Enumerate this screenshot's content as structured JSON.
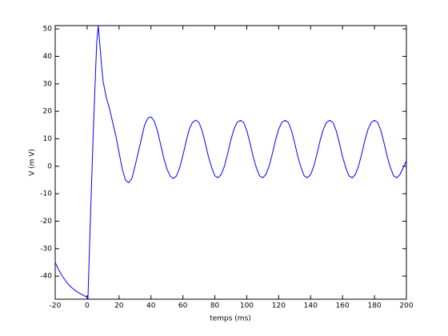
{
  "chart_data": {
    "type": "line",
    "xlabel": "temps (ms)",
    "ylabel": "V (m V)",
    "xlim": [
      -20,
      200
    ],
    "ylim": [
      -48.4,
      51.2
    ],
    "xticks": [
      -20,
      0,
      20,
      40,
      60,
      80,
      100,
      120,
      140,
      160,
      180,
      200
    ],
    "yticks": [
      -40,
      -30,
      -20,
      -10,
      0,
      10,
      20,
      30,
      40,
      50
    ],
    "grid": false,
    "x": [
      -20,
      -18,
      -16,
      -14,
      -12,
      -10,
      -8,
      -6,
      -4,
      -2,
      0,
      0.5,
      2,
      4,
      6,
      7,
      8,
      9,
      10,
      12,
      14,
      16,
      18,
      20,
      22,
      24,
      26,
      28,
      30,
      32,
      34,
      36,
      38,
      40,
      42,
      44,
      46,
      48,
      50,
      52,
      54,
      56,
      58,
      60,
      62,
      64,
      66,
      68,
      70,
      72,
      74,
      76,
      78,
      80,
      82,
      84,
      86,
      88,
      90,
      92,
      94,
      96,
      98,
      100,
      102,
      104,
      106,
      108,
      110,
      112,
      114,
      116,
      118,
      120,
      122,
      124,
      126,
      128,
      130,
      132,
      134,
      136,
      138,
      140,
      142,
      144,
      146,
      148,
      150,
      152,
      154,
      156,
      158,
      160,
      162,
      164,
      166,
      168,
      170,
      172,
      174,
      176,
      178,
      180,
      182,
      184,
      186,
      188,
      190,
      192,
      194,
      196,
      198,
      200
    ],
    "series": [
      {
        "color": "#0000ff",
        "values": [
          -35,
          -37.5,
          -39.6,
          -41.3,
          -42.8,
          -44,
          -45,
          -45.8,
          -46.5,
          -47.1,
          -47.6,
          -48.4,
          -20,
          15,
          45,
          51.2,
          44,
          37,
          31,
          25,
          21,
          16,
          11,
          5,
          -1,
          -5,
          -6,
          -4.5,
          0,
          5,
          10,
          15,
          17.5,
          18,
          16.5,
          13,
          8,
          3,
          -1,
          -3.5,
          -4.5,
          -3.5,
          -0.5,
          4,
          9,
          13.5,
          16,
          16.8,
          16,
          13,
          8.5,
          3.5,
          -0.5,
          -3.5,
          -4.2,
          -3,
          0,
          4.5,
          9.5,
          13.5,
          16,
          16.7,
          16,
          13,
          8.5,
          3.5,
          -0.5,
          -3.5,
          -4.2,
          -3,
          0,
          4.5,
          9.5,
          13.5,
          16,
          16.7,
          16,
          13,
          8.5,
          3.5,
          -0.5,
          -3.5,
          -4.2,
          -3,
          0,
          4.5,
          9.5,
          13.5,
          16,
          16.7,
          16,
          13,
          8.5,
          3.5,
          -0.5,
          -3.5,
          -4.2,
          -3,
          0,
          4.5,
          9.5,
          13.5,
          16,
          16.7,
          16,
          13,
          8.5,
          3.5,
          -0.5,
          -3.5,
          -4.2,
          -3,
          -0.5,
          2
        ]
      }
    ]
  }
}
